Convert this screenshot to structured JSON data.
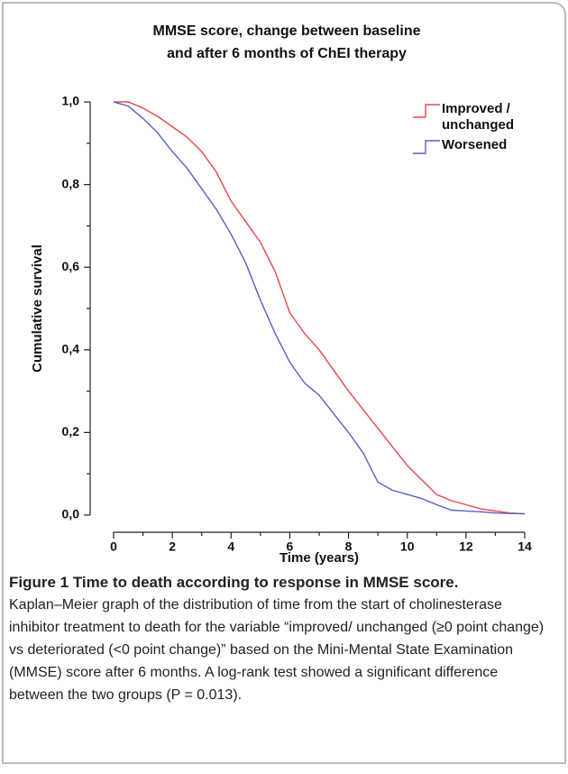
{
  "chart_data": {
    "type": "line",
    "title": [
      "MMSE score, change between baseline",
      "and after 6 months of ChEI therapy"
    ],
    "x_label": "Time (years)",
    "y_label": "Cumulative survival",
    "x": [
      0,
      0.5,
      1,
      1.5,
      2,
      2.5,
      3,
      3.5,
      4,
      4.5,
      5,
      5.5,
      6,
      6.5,
      7,
      7.5,
      8,
      8.5,
      9,
      9.5,
      10,
      10.5,
      11,
      11.5,
      12,
      12.5,
      13,
      13.5,
      14
    ],
    "series": [
      {
        "name": "Improved / unchanged",
        "color": "#e8484a",
        "values": [
          1,
          1,
          0.985,
          0.965,
          0.94,
          0.915,
          0.88,
          0.83,
          0.76,
          0.71,
          0.66,
          0.59,
          0.49,
          0.44,
          0.4,
          0.35,
          0.3,
          0.255,
          0.21,
          0.165,
          0.12,
          0.085,
          0.05,
          0.035,
          0.025,
          0.015,
          0.01,
          0.005,
          0.003
        ]
      },
      {
        "name": "Worsened",
        "color": "#5a5fc0",
        "values": [
          1,
          0.99,
          0.96,
          0.925,
          0.88,
          0.84,
          0.79,
          0.74,
          0.68,
          0.61,
          0.52,
          0.44,
          0.37,
          0.32,
          0.29,
          0.245,
          0.2,
          0.15,
          0.08,
          0.06,
          0.05,
          0.04,
          0.025,
          0.012,
          0.01,
          0.008,
          0.005,
          0.004,
          0.003
        ]
      }
    ],
    "xlim": [
      0,
      14
    ],
    "xticks": [
      0,
      2,
      4,
      6,
      8,
      10,
      12,
      14
    ],
    "xticks_minor": [
      1,
      3,
      5,
      7,
      9,
      11,
      13
    ],
    "ylim": [
      0,
      1
    ],
    "yticks": [
      {
        "value": 0,
        "label": "0,0"
      },
      {
        "value": 0.2,
        "label": "0,2"
      },
      {
        "value": 0.4,
        "label": "0,4"
      },
      {
        "value": 0.6,
        "label": "0,6"
      },
      {
        "value": 0.8,
        "label": "0,8"
      },
      {
        "value": 1,
        "label": "1,0"
      }
    ],
    "yticks_minor": [
      0.1,
      0.3,
      0.5,
      0.7,
      0.9
    ],
    "legend": "upper right"
  },
  "caption": {
    "title": "Figure 1 Time to death according to response in MMSE score.",
    "text": "Kaplan–Meier graph of the distribution of time from the start of cholinesterase inhibitor treatment to death for the variable “improved/ unchanged (≥0 point change) vs deteriorated (<0 point change)” based on the Mini-Mental State Examination (MMSE) score after 6 months. A log-rank test showed a significant difference between the two groups (P = 0.013)."
  }
}
